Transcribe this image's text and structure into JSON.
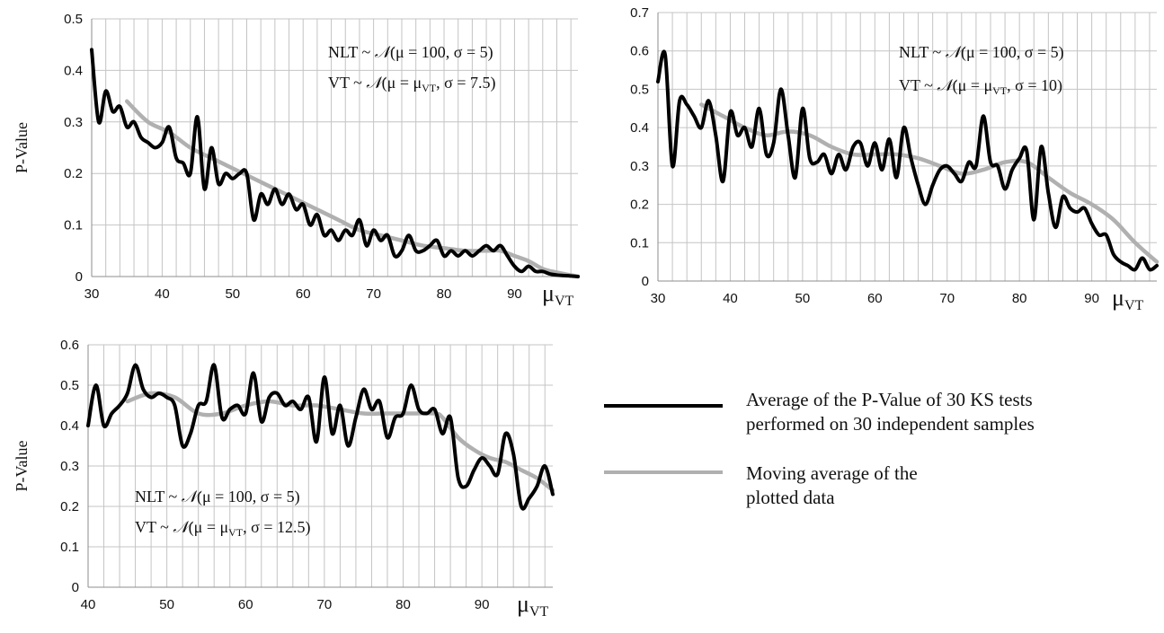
{
  "colors": {
    "avg": "#000000",
    "moving": "#b0b0b0",
    "grid": "#c4c4c4"
  },
  "legend": {
    "avg_line1": "Average of the P-Value of 30 KS tests",
    "avg_line2": "performed on 30 independent samples",
    "moving_line1": "Moving average of the",
    "moving_line2": "plotted data"
  },
  "chart_data": [
    {
      "type": "line",
      "title": "",
      "ylabel": "P-Value",
      "xlabel_main": "μ",
      "xlabel_sub": "VT",
      "xlim": [
        30,
        99
      ],
      "ylim": [
        0,
        0.5
      ],
      "xticks": [
        30,
        40,
        50,
        60,
        70,
        80,
        90
      ],
      "yticks": [
        "0",
        "0.1",
        "0.2",
        "0.3",
        "0.4",
        "0.5"
      ],
      "grid": true,
      "annotation": [
        {
          "parts": [
            "NLT ~ ",
            "𝒩",
            "(μ = 100, σ = 5)"
          ]
        },
        {
          "parts": [
            "VT ~ ",
            "𝒩",
            "(μ = μ",
            "VT",
            ", σ = 7.5)"
          ]
        }
      ],
      "series": [
        {
          "key": "avg",
          "x": [
            30,
            31,
            32,
            33,
            34,
            35,
            36,
            37,
            38,
            39,
            40,
            41,
            42,
            43,
            44,
            45,
            46,
            47,
            48,
            49,
            50,
            51,
            52,
            53,
            54,
            55,
            56,
            57,
            58,
            59,
            60,
            61,
            62,
            63,
            64,
            65,
            66,
            67,
            68,
            69,
            70,
            71,
            72,
            73,
            74,
            75,
            76,
            77,
            78,
            79,
            80,
            81,
            82,
            83,
            84,
            85,
            86,
            87,
            88,
            89,
            90,
            91,
            92,
            93,
            94,
            95,
            96,
            97,
            98,
            99
          ],
          "y": [
            0.44,
            0.3,
            0.36,
            0.32,
            0.33,
            0.29,
            0.3,
            0.27,
            0.26,
            0.25,
            0.26,
            0.29,
            0.23,
            0.22,
            0.2,
            0.31,
            0.17,
            0.25,
            0.18,
            0.2,
            0.19,
            0.2,
            0.2,
            0.11,
            0.16,
            0.14,
            0.17,
            0.14,
            0.16,
            0.13,
            0.14,
            0.1,
            0.12,
            0.08,
            0.09,
            0.07,
            0.09,
            0.08,
            0.11,
            0.06,
            0.09,
            0.07,
            0.08,
            0.04,
            0.05,
            0.08,
            0.05,
            0.05,
            0.06,
            0.07,
            0.04,
            0.05,
            0.04,
            0.05,
            0.04,
            0.05,
            0.06,
            0.05,
            0.06,
            0.04,
            0.02,
            0.01,
            0.02,
            0.01,
            0.01,
            0.005,
            0.003,
            0.002,
            0.001,
            0.0
          ]
        },
        {
          "key": "moving",
          "x": [
            35,
            38,
            41,
            44,
            47,
            50,
            53,
            56,
            59,
            62,
            65,
            68,
            71,
            74,
            77,
            80,
            83,
            86,
            88,
            90,
            92,
            94,
            96,
            99
          ],
          "y": [
            0.34,
            0.3,
            0.28,
            0.25,
            0.23,
            0.21,
            0.19,
            0.17,
            0.15,
            0.13,
            0.11,
            0.09,
            0.08,
            0.07,
            0.06,
            0.055,
            0.05,
            0.05,
            0.05,
            0.04,
            0.03,
            0.015,
            0.008,
            0.0
          ]
        }
      ]
    },
    {
      "type": "line",
      "title": "",
      "ylabel": "",
      "xlabel_main": "μ",
      "xlabel_sub": "VT",
      "xlim": [
        30,
        99
      ],
      "ylim": [
        0,
        0.7
      ],
      "xticks": [
        30,
        40,
        50,
        60,
        70,
        80,
        90
      ],
      "yticks": [
        "0",
        "0.1",
        "0.2",
        "0.3",
        "0.4",
        "0.5",
        "0.6",
        "0.7"
      ],
      "grid": true,
      "annotation": [
        {
          "parts": [
            "NLT ~ ",
            "𝒩",
            "(μ = 100, σ = 5)"
          ]
        },
        {
          "parts": [
            "VT ~ ",
            "𝒩",
            "(μ = μ",
            "VT",
            ", σ = 10)"
          ]
        }
      ],
      "series": [
        {
          "key": "avg",
          "x": [
            30,
            31,
            32,
            33,
            34,
            35,
            36,
            37,
            38,
            39,
            40,
            41,
            42,
            43,
            44,
            45,
            46,
            47,
            48,
            49,
            50,
            51,
            52,
            53,
            54,
            55,
            56,
            57,
            58,
            59,
            60,
            61,
            62,
            63,
            64,
            65,
            66,
            67,
            68,
            69,
            70,
            71,
            72,
            73,
            74,
            75,
            76,
            77,
            78,
            79,
            80,
            81,
            82,
            83,
            84,
            85,
            86,
            87,
            88,
            89,
            90,
            91,
            92,
            93,
            94,
            95,
            96,
            97,
            98,
            99
          ],
          "y": [
            0.52,
            0.59,
            0.3,
            0.47,
            0.46,
            0.43,
            0.4,
            0.47,
            0.38,
            0.26,
            0.44,
            0.38,
            0.4,
            0.35,
            0.45,
            0.33,
            0.36,
            0.5,
            0.38,
            0.27,
            0.45,
            0.32,
            0.31,
            0.33,
            0.28,
            0.33,
            0.29,
            0.35,
            0.36,
            0.3,
            0.36,
            0.29,
            0.37,
            0.27,
            0.4,
            0.32,
            0.25,
            0.2,
            0.25,
            0.29,
            0.3,
            0.28,
            0.26,
            0.31,
            0.3,
            0.43,
            0.31,
            0.3,
            0.24,
            0.29,
            0.32,
            0.34,
            0.16,
            0.35,
            0.23,
            0.14,
            0.22,
            0.19,
            0.18,
            0.19,
            0.15,
            0.12,
            0.12,
            0.07,
            0.05,
            0.04,
            0.03,
            0.06,
            0.03,
            0.04
          ]
        },
        {
          "key": "moving",
          "x": [
            36,
            39,
            42,
            45,
            48,
            51,
            54,
            57,
            60,
            63,
            66,
            69,
            72,
            75,
            78,
            81,
            84,
            87,
            90,
            93,
            96,
            99
          ],
          "y": [
            0.46,
            0.43,
            0.4,
            0.38,
            0.39,
            0.38,
            0.35,
            0.33,
            0.33,
            0.33,
            0.32,
            0.3,
            0.28,
            0.29,
            0.31,
            0.31,
            0.27,
            0.23,
            0.2,
            0.16,
            0.1,
            0.05
          ]
        }
      ]
    },
    {
      "type": "line",
      "title": "",
      "ylabel": "P-Value",
      "xlabel_main": "μ",
      "xlabel_sub": "VT",
      "xlim": [
        40,
        99
      ],
      "ylim": [
        0,
        0.6
      ],
      "xticks": [
        40,
        50,
        60,
        70,
        80,
        90
      ],
      "yticks": [
        "0",
        "0.1",
        "0.2",
        "0.3",
        "0.4",
        "0.5",
        "0.6"
      ],
      "grid": true,
      "annotation": [
        {
          "parts": [
            "NLT ~ ",
            "𝒩",
            "(μ = 100, σ = 5)"
          ]
        },
        {
          "parts": [
            "VT ~ ",
            "𝒩",
            "(μ = μ",
            "VT",
            ", σ = 12.5)"
          ]
        }
      ],
      "series": [
        {
          "key": "avg",
          "x": [
            40,
            41,
            42,
            43,
            44,
            45,
            46,
            47,
            48,
            49,
            50,
            51,
            52,
            53,
            54,
            55,
            56,
            57,
            58,
            59,
            60,
            61,
            62,
            63,
            64,
            65,
            66,
            67,
            68,
            69,
            70,
            71,
            72,
            73,
            74,
            75,
            76,
            77,
            78,
            79,
            80,
            81,
            82,
            83,
            84,
            85,
            86,
            87,
            88,
            89,
            90,
            91,
            92,
            93,
            94,
            95,
            96,
            97,
            98,
            99
          ],
          "y": [
            0.4,
            0.5,
            0.4,
            0.43,
            0.45,
            0.48,
            0.55,
            0.49,
            0.47,
            0.48,
            0.47,
            0.45,
            0.35,
            0.38,
            0.45,
            0.46,
            0.55,
            0.42,
            0.44,
            0.45,
            0.43,
            0.53,
            0.41,
            0.47,
            0.48,
            0.45,
            0.46,
            0.44,
            0.47,
            0.36,
            0.52,
            0.38,
            0.45,
            0.35,
            0.42,
            0.49,
            0.44,
            0.46,
            0.37,
            0.42,
            0.43,
            0.5,
            0.44,
            0.43,
            0.44,
            0.38,
            0.42,
            0.27,
            0.25,
            0.29,
            0.32,
            0.3,
            0.28,
            0.38,
            0.33,
            0.2,
            0.22,
            0.25,
            0.3,
            0.23
          ]
        },
        {
          "key": "moving",
          "x": [
            45,
            48,
            51,
            54,
            57,
            60,
            63,
            66,
            69,
            72,
            75,
            78,
            81,
            84,
            85,
            87,
            89,
            91,
            93,
            95,
            97,
            99
          ],
          "y": [
            0.46,
            0.48,
            0.47,
            0.43,
            0.43,
            0.45,
            0.46,
            0.45,
            0.45,
            0.44,
            0.43,
            0.43,
            0.43,
            0.43,
            0.42,
            0.37,
            0.34,
            0.32,
            0.31,
            0.29,
            0.27,
            0.24
          ]
        }
      ]
    }
  ]
}
